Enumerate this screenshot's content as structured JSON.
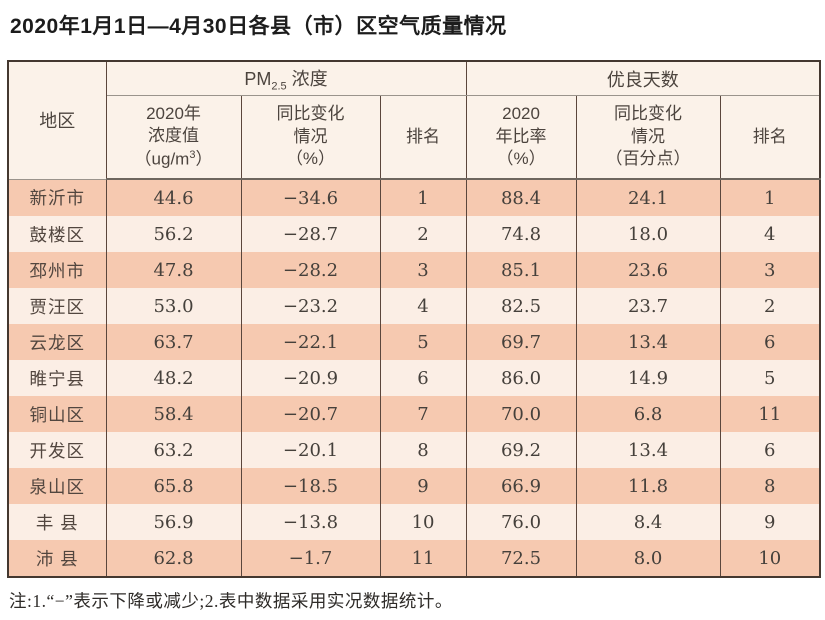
{
  "page": {
    "title": "2020年1月1日—4月30日各县（市）区空气质量情况",
    "note": "注:1.“−”表示下降或减少;2.表中数据采用实况数据统计。"
  },
  "table": {
    "corner_header": "地区",
    "group_pm": {
      "main": "PM",
      "sub": "2.5",
      "rest": " 浓度"
    },
    "group_good": "优良天数",
    "sub_pm_value": {
      "line1": "2020年",
      "line2": "浓度值",
      "unit_pre": "（ug/m",
      "unit_sup": "3",
      "unit_post": "）"
    },
    "sub_pm_change": {
      "line1": "同比变化",
      "line2": "情况",
      "line3": "（%）"
    },
    "sub_pm_rank": "排名",
    "sub_good_rate": {
      "line1": "2020",
      "line2": "年比率",
      "line3": "（%）"
    },
    "sub_good_change": {
      "line1": "同比变化",
      "line2": "情况",
      "line3": "（百分点）"
    },
    "sub_good_rank": "排名",
    "rows": [
      [
        "新沂市",
        "44.6",
        "−34.6",
        "1",
        "88.4",
        "24.1",
        "1"
      ],
      [
        "鼓楼区",
        "56.2",
        "−28.7",
        "2",
        "74.8",
        "18.0",
        "4"
      ],
      [
        "邳州市",
        "47.8",
        "−28.2",
        "3",
        "85.1",
        "23.6",
        "3"
      ],
      [
        "贾汪区",
        "53.0",
        "−23.2",
        "4",
        "82.5",
        "23.7",
        "2"
      ],
      [
        "云龙区",
        "63.7",
        "−22.1",
        "5",
        "69.7",
        "13.4",
        "6"
      ],
      [
        "睢宁县",
        "48.2",
        "−20.9",
        "6",
        "86.0",
        "14.9",
        "5"
      ],
      [
        "铜山区",
        "58.4",
        "−20.7",
        "7",
        "70.0",
        "6.8",
        "11"
      ],
      [
        "开发区",
        "63.2",
        "−20.1",
        "8",
        "69.2",
        "13.4",
        "6"
      ],
      [
        "泉山区",
        "65.8",
        "−18.5",
        "9",
        "66.9",
        "11.8",
        "8"
      ],
      [
        "丰 县",
        "56.9",
        "−13.8",
        "10",
        "76.0",
        "8.4",
        "9"
      ],
      [
        "沛 县",
        "62.8",
        "−1.7",
        "11",
        "72.5",
        "8.0",
        "10"
      ]
    ]
  },
  "colors": {
    "row_salmon": "#f6c9b0",
    "row_light": "#fbeee5",
    "header_bg": "#fbf2e9",
    "outer_border": "#443830",
    "grid_line": "#5b463c",
    "text": "#45403b"
  },
  "chart_data": {
    "type": "table",
    "title": "2020年1月1日—4月30日各县（市）区空气质量情况",
    "column_groups": [
      "PM2.5浓度",
      "优良天数"
    ],
    "columns": [
      "地区",
      "PM2.5 2020年浓度值（ug/m3）",
      "PM2.5 同比变化情况（%）",
      "PM2.5 排名",
      "优良天数 2020年比率（%）",
      "优良天数 同比变化情况（百分点）",
      "优良天数 排名"
    ],
    "rows": [
      {
        "region": "新沂市",
        "pm25_2020": 44.6,
        "pm25_change_pct": -34.6,
        "pm25_rank": 1,
        "good_rate_pct": 88.4,
        "good_change_pts": 24.1,
        "good_rank": 1
      },
      {
        "region": "鼓楼区",
        "pm25_2020": 56.2,
        "pm25_change_pct": -28.7,
        "pm25_rank": 2,
        "good_rate_pct": 74.8,
        "good_change_pts": 18.0,
        "good_rank": 4
      },
      {
        "region": "邳州市",
        "pm25_2020": 47.8,
        "pm25_change_pct": -28.2,
        "pm25_rank": 3,
        "good_rate_pct": 85.1,
        "good_change_pts": 23.6,
        "good_rank": 3
      },
      {
        "region": "贾汪区",
        "pm25_2020": 53.0,
        "pm25_change_pct": -23.2,
        "pm25_rank": 4,
        "good_rate_pct": 82.5,
        "good_change_pts": 23.7,
        "good_rank": 2
      },
      {
        "region": "云龙区",
        "pm25_2020": 63.7,
        "pm25_change_pct": -22.1,
        "pm25_rank": 5,
        "good_rate_pct": 69.7,
        "good_change_pts": 13.4,
        "good_rank": 6
      },
      {
        "region": "睢宁县",
        "pm25_2020": 48.2,
        "pm25_change_pct": -20.9,
        "pm25_rank": 6,
        "good_rate_pct": 86.0,
        "good_change_pts": 14.9,
        "good_rank": 5
      },
      {
        "region": "铜山区",
        "pm25_2020": 58.4,
        "pm25_change_pct": -20.7,
        "pm25_rank": 7,
        "good_rate_pct": 70.0,
        "good_change_pts": 6.8,
        "good_rank": 11
      },
      {
        "region": "开发区",
        "pm25_2020": 63.2,
        "pm25_change_pct": -20.1,
        "pm25_rank": 8,
        "good_rate_pct": 69.2,
        "good_change_pts": 13.4,
        "good_rank": 6
      },
      {
        "region": "泉山区",
        "pm25_2020": 65.8,
        "pm25_change_pct": -18.5,
        "pm25_rank": 9,
        "good_rate_pct": 66.9,
        "good_change_pts": 11.8,
        "good_rank": 8
      },
      {
        "region": "丰县",
        "pm25_2020": 56.9,
        "pm25_change_pct": -13.8,
        "pm25_rank": 10,
        "good_rate_pct": 76.0,
        "good_change_pts": 8.4,
        "good_rank": 9
      },
      {
        "region": "沛县",
        "pm25_2020": 62.8,
        "pm25_change_pct": -1.7,
        "pm25_rank": 11,
        "good_rate_pct": 72.5,
        "good_change_pts": 8.0,
        "good_rank": 10
      }
    ],
    "note": "注:1.“−”表示下降或减少;2.表中数据采用实况数据统计。",
    "layout": {
      "zebra_rows": true,
      "header_rows": 2,
      "grid": "vertical-lines-only"
    }
  }
}
